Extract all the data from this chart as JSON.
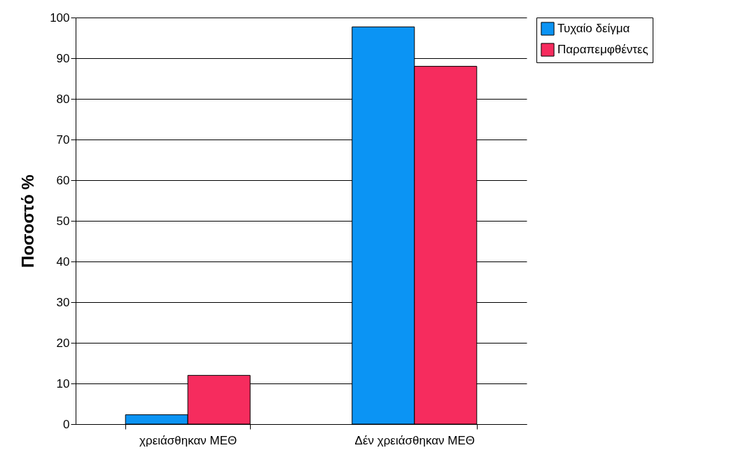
{
  "chart_data": {
    "type": "bar",
    "ylabel": "Ποσοστό %",
    "categories": [
      "χρειάσθηκαν ΜΕΘ",
      "Δέν χρειάσθηκαν ΜΕΘ"
    ],
    "series": [
      {
        "name": "Τυχαίο δείγμα",
        "color": "#0b94f4",
        "values": [
          2.3,
          97.7
        ]
      },
      {
        "name": "Παραπεμφθέντες",
        "color": "#f62c5e",
        "values": [
          12,
          88
        ]
      }
    ],
    "ylim": [
      0,
      100
    ],
    "yticks": [
      0,
      10,
      20,
      30,
      40,
      50,
      60,
      70,
      80,
      90,
      100
    ],
    "grid": "y",
    "legend": "right"
  }
}
